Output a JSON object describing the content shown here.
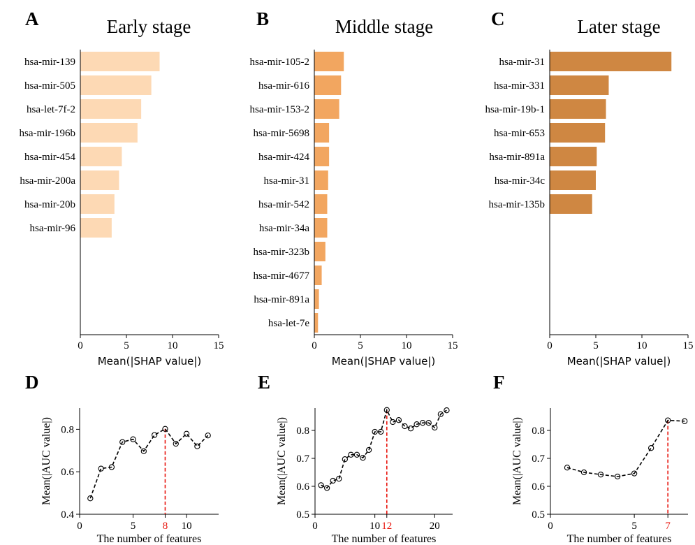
{
  "panels": {
    "A": {
      "letter": "A",
      "title": "Early stage"
    },
    "B": {
      "letter": "B",
      "title": "Middle stage"
    },
    "C": {
      "letter": "C",
      "title": "Later stage"
    },
    "D": {
      "letter": "D"
    },
    "E": {
      "letter": "E"
    },
    "F": {
      "letter": "F"
    }
  },
  "colors": {
    "early": "#fdd9b4",
    "middle": "#f2a660",
    "later": "#cf8742",
    "line": "#000000",
    "highlight": "#e8140c"
  },
  "chart_data": [
    {
      "id": "A",
      "type": "bar",
      "orientation": "horizontal",
      "title": "Early stage",
      "xlabel": "Mean(|SHAP value|)",
      "xlim": [
        0,
        15
      ],
      "xticks": [
        0,
        5,
        10,
        15
      ],
      "categories": [
        "hsa-mir-139",
        "hsa-mir-505",
        "hsa-let-7f-2",
        "hsa-mir-196b",
        "hsa-mir-454",
        "hsa-mir-200a",
        "hsa-mir-20b",
        "hsa-mir-96"
      ],
      "values": [
        8.6,
        7.7,
        6.6,
        6.2,
        4.5,
        4.2,
        3.7,
        3.4
      ],
      "color": "#fdd9b4"
    },
    {
      "id": "B",
      "type": "bar",
      "orientation": "horizontal",
      "title": "Middle stage",
      "xlabel": "Mean(|SHAP value|)",
      "xlim": [
        0,
        15
      ],
      "xticks": [
        0,
        5,
        10,
        15
      ],
      "categories": [
        "hsa-mir-105-2",
        "hsa-mir-616",
        "hsa-mir-153-2",
        "hsa-mir-5698",
        "hsa-mir-424",
        "hsa-mir-31",
        "hsa-mir-542",
        "hsa-mir-34a",
        "hsa-mir-323b",
        "hsa-mir-4677",
        "hsa-mir-891a",
        "hsa-let-7e"
      ],
      "values": [
        3.2,
        2.9,
        2.7,
        1.6,
        1.6,
        1.5,
        1.4,
        1.4,
        1.2,
        0.8,
        0.5,
        0.4
      ],
      "color": "#f2a660"
    },
    {
      "id": "C",
      "type": "bar",
      "orientation": "horizontal",
      "title": "Later stage",
      "xlabel": "Mean(|SHAP value|)",
      "xlim": [
        0,
        15
      ],
      "xticks": [
        0,
        5,
        10,
        15
      ],
      "categories": [
        "hsa-mir-31",
        "hsa-mir-331",
        "hsa-mir-19b-1",
        "hsa-mir-653",
        "hsa-mir-891a",
        "hsa-mir-34c",
        "hsa-mir-135b"
      ],
      "values": [
        13.2,
        6.4,
        6.1,
        6.0,
        5.1,
        5.0,
        4.6
      ],
      "color": "#cf8742"
    },
    {
      "id": "D",
      "type": "line",
      "xlabel": "The number of features",
      "ylabel": "Mean(|AUC value|)",
      "xlim": [
        0,
        13
      ],
      "ylim": [
        0.4,
        0.9
      ],
      "xticks": [
        0,
        5,
        10
      ],
      "yticks": [
        0.4,
        0.6,
        0.8
      ],
      "highlight_x": 8,
      "x": [
        1,
        2,
        3,
        4,
        5,
        6,
        7,
        8,
        9,
        10,
        11,
        12
      ],
      "y": [
        0.475,
        0.615,
        0.622,
        0.74,
        0.753,
        0.697,
        0.773,
        0.802,
        0.732,
        0.779,
        0.72,
        0.771
      ]
    },
    {
      "id": "E",
      "type": "line",
      "xlabel": "The number of features",
      "ylabel": "Mean(|AUC value|)",
      "xlim": [
        0,
        23
      ],
      "ylim": [
        0.5,
        0.88
      ],
      "xticks": [
        0,
        10,
        20
      ],
      "yticks": [
        0.5,
        0.6,
        0.7,
        0.8
      ],
      "highlight_x": 12,
      "x": [
        1,
        2,
        3,
        4,
        5,
        6,
        7,
        8,
        9,
        10,
        11,
        12,
        13,
        14,
        15,
        16,
        17,
        18,
        19,
        20,
        21,
        22
      ],
      "y": [
        0.604,
        0.594,
        0.62,
        0.627,
        0.697,
        0.713,
        0.713,
        0.702,
        0.73,
        0.795,
        0.795,
        0.873,
        0.83,
        0.837,
        0.815,
        0.807,
        0.822,
        0.827,
        0.827,
        0.81,
        0.858,
        0.872
      ]
    },
    {
      "id": "F",
      "type": "line",
      "xlabel": "The number of features",
      "ylabel": "Mean(|AUC value|)",
      "xlim": [
        0,
        8.2
      ],
      "ylim": [
        0.5,
        0.88
      ],
      "xticks": [
        0,
        5
      ],
      "yticks": [
        0.5,
        0.6,
        0.7,
        0.8
      ],
      "highlight_x": 7,
      "x": [
        1,
        2,
        3,
        4,
        5,
        6,
        7,
        8
      ],
      "y": [
        0.667,
        0.65,
        0.642,
        0.635,
        0.646,
        0.737,
        0.836,
        0.833
      ]
    }
  ]
}
